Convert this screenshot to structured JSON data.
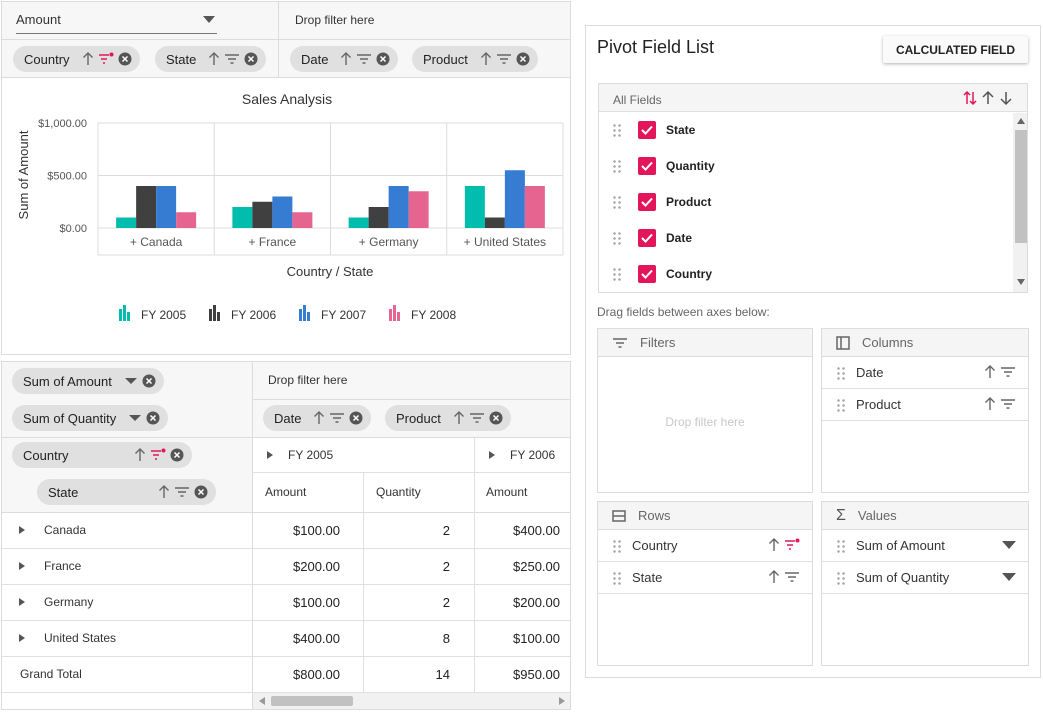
{
  "top_grouping": {
    "value_select": "Amount",
    "filter_drop_hint": "Drop filter here",
    "row_pills": [
      "Country",
      "State"
    ],
    "column_pills": [
      "Date",
      "Product"
    ]
  },
  "chart": {
    "title": "Sales Analysis",
    "ylabel": "Sum of Amount",
    "xlabel": "Country / State",
    "legend": [
      "FY 2005",
      "FY 2006",
      "FY 2007",
      "FY 2008"
    ],
    "colors": [
      "#00bdae",
      "#404041",
      "#357cd2",
      "#e56590"
    ]
  },
  "chart_data": {
    "type": "bar",
    "title": "Sales Analysis",
    "xlabel": "Country / State",
    "ylabel": "Sum of Amount",
    "categories": [
      "+ Canada",
      "+ France",
      "+ Germany",
      "+ United States"
    ],
    "series": [
      {
        "name": "FY 2005",
        "values": [
          100,
          200,
          100,
          400
        ]
      },
      {
        "name": "FY 2006",
        "values": [
          400,
          250,
          200,
          100
        ]
      },
      {
        "name": "FY 2007",
        "values": [
          400,
          300,
          400,
          550
        ]
      },
      {
        "name": "FY 2008",
        "values": [
          150,
          150,
          350,
          400
        ]
      }
    ],
    "yticks": [
      "$0.00",
      "$500.00",
      "$1,000.00"
    ],
    "ylim": [
      0,
      1000
    ],
    "legend_position": "bottom",
    "grid": true
  },
  "grid": {
    "value_pills": [
      "Sum of Amount",
      "Sum of Quantity"
    ],
    "filter_drop_hint": "Drop filter here",
    "column_pills": [
      "Date",
      "Product"
    ],
    "row_pills": [
      "Country",
      "State"
    ],
    "year_headers": [
      "FY 2005",
      "FY 2006"
    ],
    "sub_headers": [
      "Amount",
      "Quantity",
      "Amount"
    ],
    "rows": [
      {
        "label": "Canada",
        "cells": [
          "$100.00",
          "2",
          "$400.00"
        ]
      },
      {
        "label": "France",
        "cells": [
          "$200.00",
          "2",
          "$250.00"
        ]
      },
      {
        "label": "Germany",
        "cells": [
          "$100.00",
          "2",
          "$200.00"
        ]
      },
      {
        "label": "United States",
        "cells": [
          "$400.00",
          "8",
          "$100.00"
        ]
      }
    ],
    "grand_total": {
      "label": "Grand Total",
      "cells": [
        "$800.00",
        "14",
        "$950.00"
      ]
    }
  },
  "field_list": {
    "title": "Pivot Field List",
    "calc_button": "CALCULATED FIELD",
    "all_fields": "All Fields",
    "fields": [
      "State",
      "Quantity",
      "Product",
      "Date",
      "Country"
    ],
    "drag_hint": "Drag fields between axes below:",
    "filters": {
      "title": "Filters",
      "drop_hint": "Drop filter here"
    },
    "columns": {
      "title": "Columns",
      "items": [
        "Date",
        "Product"
      ]
    },
    "rows": {
      "title": "Rows",
      "items": [
        "Country",
        "State"
      ]
    },
    "values": {
      "title": "Values",
      "items": [
        "Sum of Amount",
        "Sum of Quantity"
      ]
    }
  }
}
